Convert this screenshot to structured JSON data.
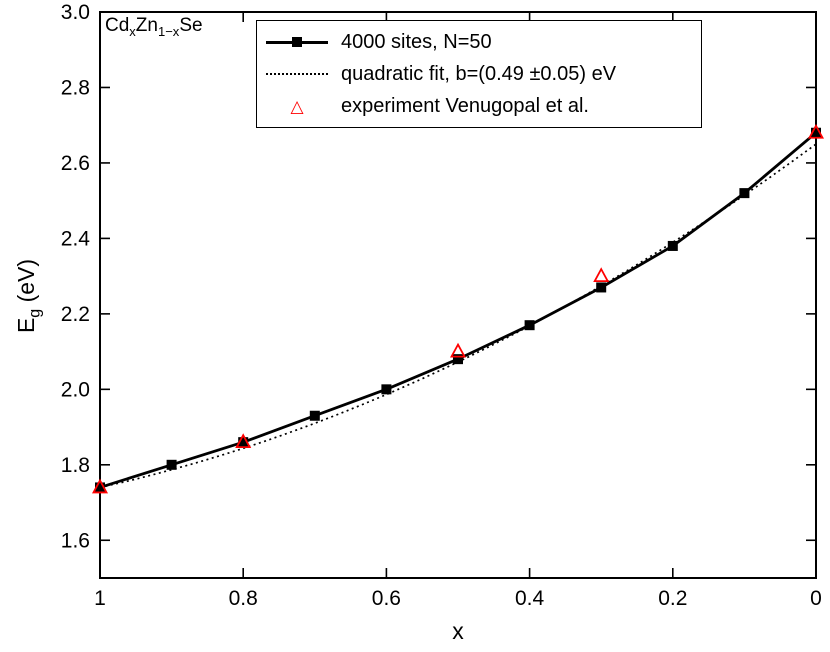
{
  "chart_data": {
    "type": "line",
    "title": "CdxZn1-xSe",
    "annotation": {
      "pre": "Cd",
      "sub1": "x",
      "mid": "Zn",
      "sub2": "1−x",
      "post": "Se"
    },
    "xlabel": "x",
    "ylabel": {
      "main": "E",
      "sub": "g",
      "unit": " (eV)"
    },
    "x_axis": {
      "left": 1,
      "right": 0,
      "reversed": true,
      "ticks": [
        1,
        0.8,
        0.6,
        0.4,
        0.2,
        0
      ],
      "tick_labels": [
        "1",
        "0.8",
        "0.6",
        "0.4",
        "0.2",
        "0"
      ]
    },
    "y_axis": {
      "min": 1.5,
      "max": 3.0,
      "ticks": [
        1.6,
        1.8,
        2.0,
        2.2,
        2.4,
        2.6,
        2.8,
        3.0
      ],
      "tick_labels": [
        "1.6",
        "1.8",
        "2.0",
        "2.2",
        "2.4",
        "2.6",
        "2.8",
        "3.0"
      ]
    },
    "grid": false,
    "legend": {
      "position": "top-center",
      "border": true
    },
    "series": [
      {
        "name": "4000 sites, N=50",
        "type": "line",
        "marker": "filled-square",
        "color": "#000000",
        "x": [
          1,
          0.9,
          0.8,
          0.7,
          0.6,
          0.5,
          0.4,
          0.3,
          0.2,
          0.1,
          0
        ],
        "y": [
          1.74,
          1.8,
          1.86,
          1.93,
          2.0,
          2.08,
          2.17,
          2.27,
          2.38,
          2.52,
          2.68
        ]
      },
      {
        "name": "quadratic fit, b=(0.49 ±0.05) eV",
        "type": "dotted-line",
        "marker": "none",
        "color": "#000000",
        "fit": {
          "E_x1": 1.74,
          "E_x0": 2.65,
          "bowing_b": 0.49
        }
      },
      {
        "name": "experiment Venugopal et al.",
        "type": "scatter",
        "marker": "open-triangle",
        "color": "#ff0000",
        "x": [
          1,
          0.8,
          0.5,
          0.3,
          0
        ],
        "y": [
          1.74,
          1.86,
          2.1,
          2.3,
          2.68
        ]
      }
    ]
  },
  "icons": {
    "open_triangle": "△"
  },
  "colors": {
    "axis": "#000000",
    "experiment": "#ff0000",
    "background": "#ffffff"
  }
}
